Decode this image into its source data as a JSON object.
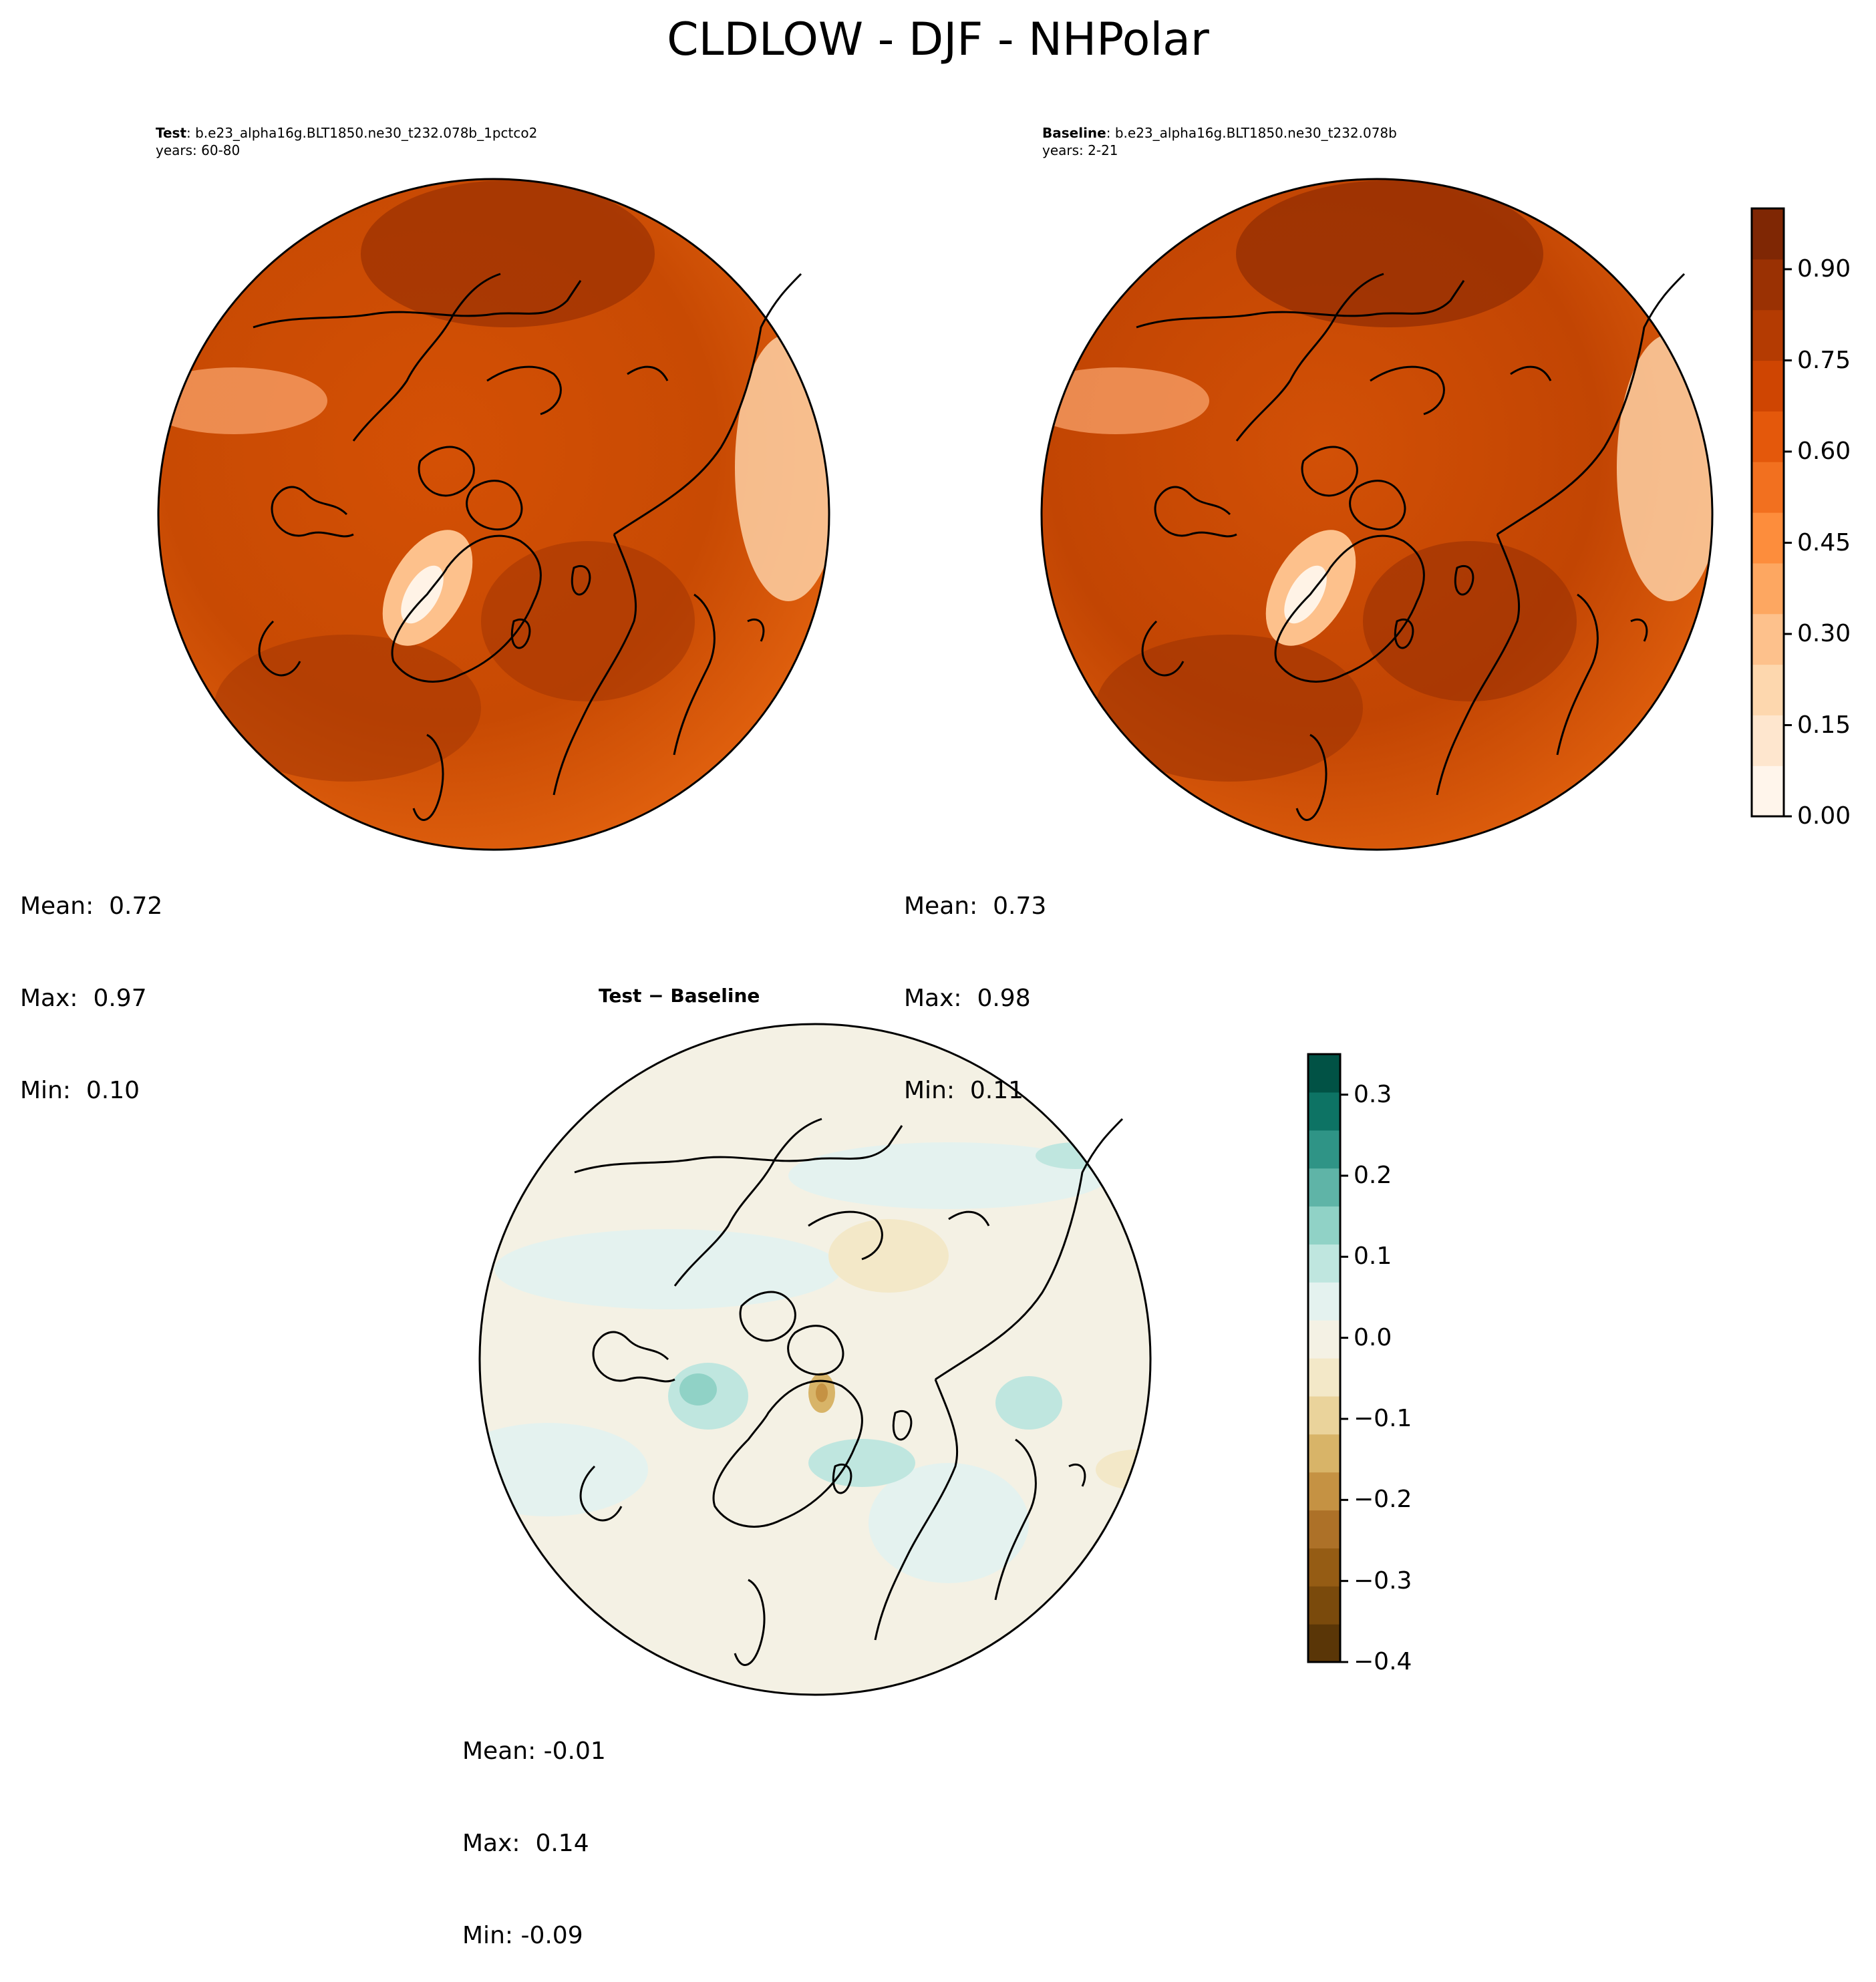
{
  "title": "CLDLOW - DJF - NHPolar",
  "panels": [
    {
      "label": "Test",
      "case": ": b.e23_alpha16g.BLT1850.ne30_t232.078b_1pctco2",
      "years": "years: 60-80",
      "stats": {
        "mean": "Mean:  0.72",
        "max": "Max:  0.97",
        "min": "Min:  0.10"
      }
    },
    {
      "label": "Baseline",
      "case": ": b.e23_alpha16g.BLT1850.ne30_t232.078b",
      "years": "years: 2-21",
      "stats": {
        "mean": "Mean:  0.73",
        "max": "Max:  0.98",
        "min": "Min:  0.11"
      }
    },
    {
      "label": "Test − Baseline",
      "stats": {
        "mean": "Mean: -0.01",
        "max": "Max:  0.14",
        "min": "Min: -0.09"
      }
    }
  ],
  "colorbars": [
    {
      "name": "field",
      "cmap": "Oranges",
      "vmin": 0.0,
      "vmax": 1.0,
      "ticks": [
        0.0,
        0.15,
        0.3,
        0.45,
        0.6,
        0.75,
        0.9
      ],
      "tick_labels": [
        "0.00",
        "0.15",
        "0.30",
        "0.45",
        "0.60",
        "0.75",
        "0.90"
      ],
      "colors": [
        "#fff5eb",
        "#fee6ce",
        "#fdd7ae",
        "#fdc18c",
        "#fda761",
        "#fd8d3c",
        "#f2701f",
        "#e4580b",
        "#cf4502",
        "#b43b02",
        "#9a3103",
        "#7f2704"
      ]
    },
    {
      "name": "difference",
      "cmap": "BrBG",
      "vmin": -0.4,
      "vmax": 0.35,
      "ticks": [
        -0.4,
        -0.3,
        -0.2,
        -0.1,
        0.0,
        0.1,
        0.2,
        0.3
      ],
      "tick_labels": [
        "−0.4",
        "−0.3",
        "−0.2",
        "−0.1",
        "0.0",
        "0.1",
        "0.2",
        "0.3"
      ],
      "colors": [
        "#5a3607",
        "#7a4a0c",
        "#955c14",
        "#ad7128",
        "#c59243",
        "#d8b468",
        "#ead39b",
        "#f3e8c8",
        "#f4f1e4",
        "#e4f2ef",
        "#bfe6df",
        "#90d2c6",
        "#5fb4a7",
        "#2f9486",
        "#0d7364",
        "#015245"
      ]
    }
  ]
}
